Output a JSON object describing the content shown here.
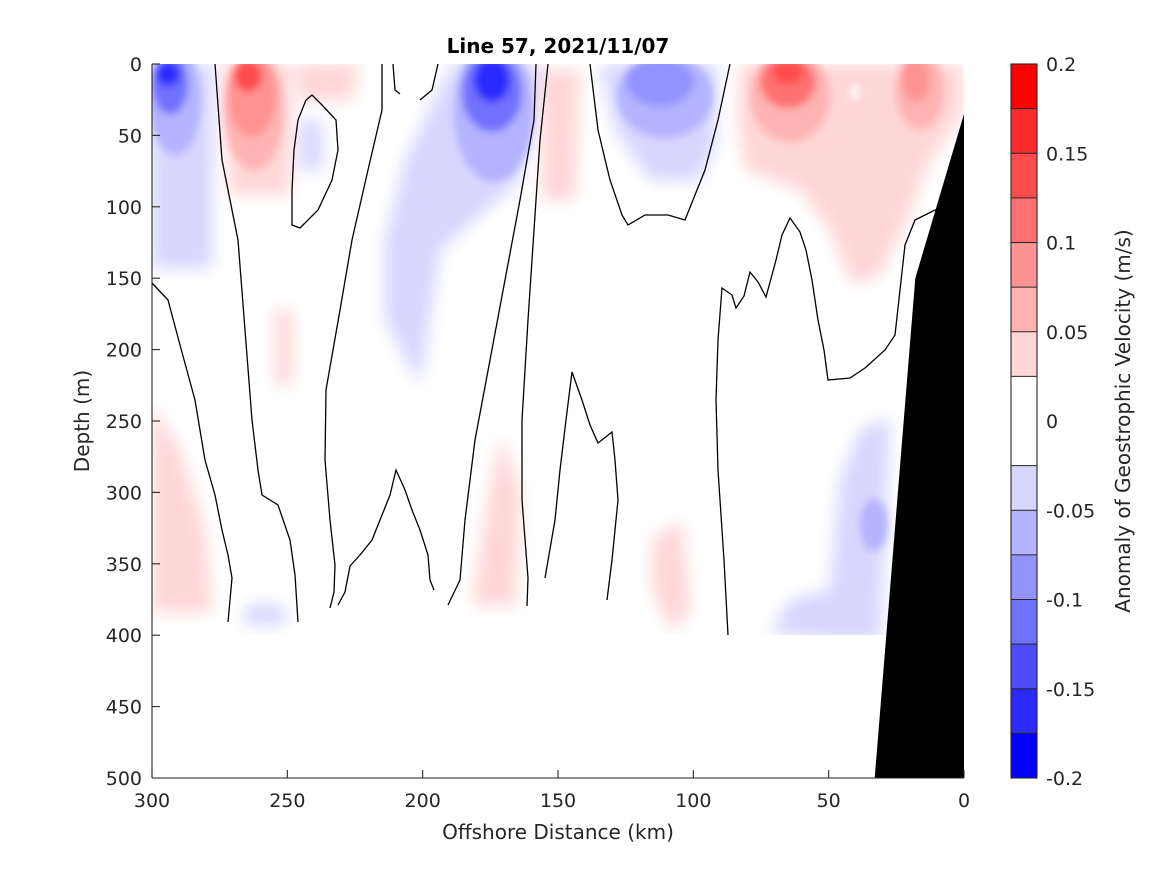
{
  "chart_data": {
    "type": "heatmap",
    "title": "Line 57, 2021/11/07",
    "xlabel": "Offshore Distance (km)",
    "ylabel": "Depth (m)",
    "xlim": [
      300,
      0
    ],
    "ylim": [
      500,
      0
    ],
    "x_reversed": true,
    "y_reversed": true,
    "x_ticks": [
      300,
      250,
      200,
      150,
      100,
      50,
      0
    ],
    "y_ticks": [
      0,
      50,
      100,
      150,
      200,
      250,
      300,
      350,
      400,
      450,
      500
    ],
    "colorbar": {
      "label": "Anomaly of Geostrophic Velocity (m/s)",
      "range": [
        -0.2,
        0.2
      ],
      "ticks": [
        0.2,
        0.15,
        0.1,
        0.05,
        0,
        -0.05,
        -0.1,
        -0.15,
        -0.2
      ],
      "tick_labels": [
        "0.2",
        "0.15",
        "0.1",
        "0.05",
        "0",
        "-0.05",
        "-0.1",
        "-0.15",
        "-0.2"
      ],
      "levels": [
        -0.2,
        -0.175,
        -0.15,
        -0.125,
        -0.1,
        -0.075,
        -0.05,
        -0.025,
        0.025,
        0.05,
        0.075,
        0.1,
        0.125,
        0.15,
        0.175,
        0.2
      ],
      "colors": [
        "#0000ff",
        "#2a2aff",
        "#4d4dff",
        "#7171ff",
        "#9393ff",
        "#b3b3ff",
        "#d6d6ff",
        "#ffffff",
        "#ffd6d6",
        "#ffb3b3",
        "#ff9393",
        "#ff7171",
        "#ff4d4d",
        "#ff2a2a",
        "#ff0000"
      ]
    },
    "data_depth_limit_m": 400,
    "zero_contour_color": "#000000",
    "bathymetry": {
      "color": "#000000",
      "x_km": [
        33,
        18,
        0,
        0,
        33
      ],
      "depth_m": [
        500,
        150,
        35,
        500,
        500
      ]
    },
    "anomaly_features": [
      {
        "sign": "negative",
        "center_x_km": 292,
        "center_depth_m": 15,
        "peak": -0.175
      },
      {
        "sign": "positive",
        "center_x_km": 263,
        "center_depth_m": 10,
        "peak": 0.125
      },
      {
        "sign": "negative",
        "center_x_km": 173,
        "center_depth_m": 15,
        "peak": -0.15
      },
      {
        "sign": "negative",
        "center_x_km": 110,
        "center_depth_m": 20,
        "peak": -0.1
      },
      {
        "sign": "positive",
        "center_x_km": 66,
        "center_depth_m": 8,
        "peak": 0.125
      },
      {
        "sign": "positive",
        "center_x_km": 20,
        "center_depth_m": 20,
        "peak": 0.075
      },
      {
        "sign": "negative",
        "center_x_km": 33,
        "center_depth_m": 330,
        "peak": -0.075
      }
    ]
  }
}
